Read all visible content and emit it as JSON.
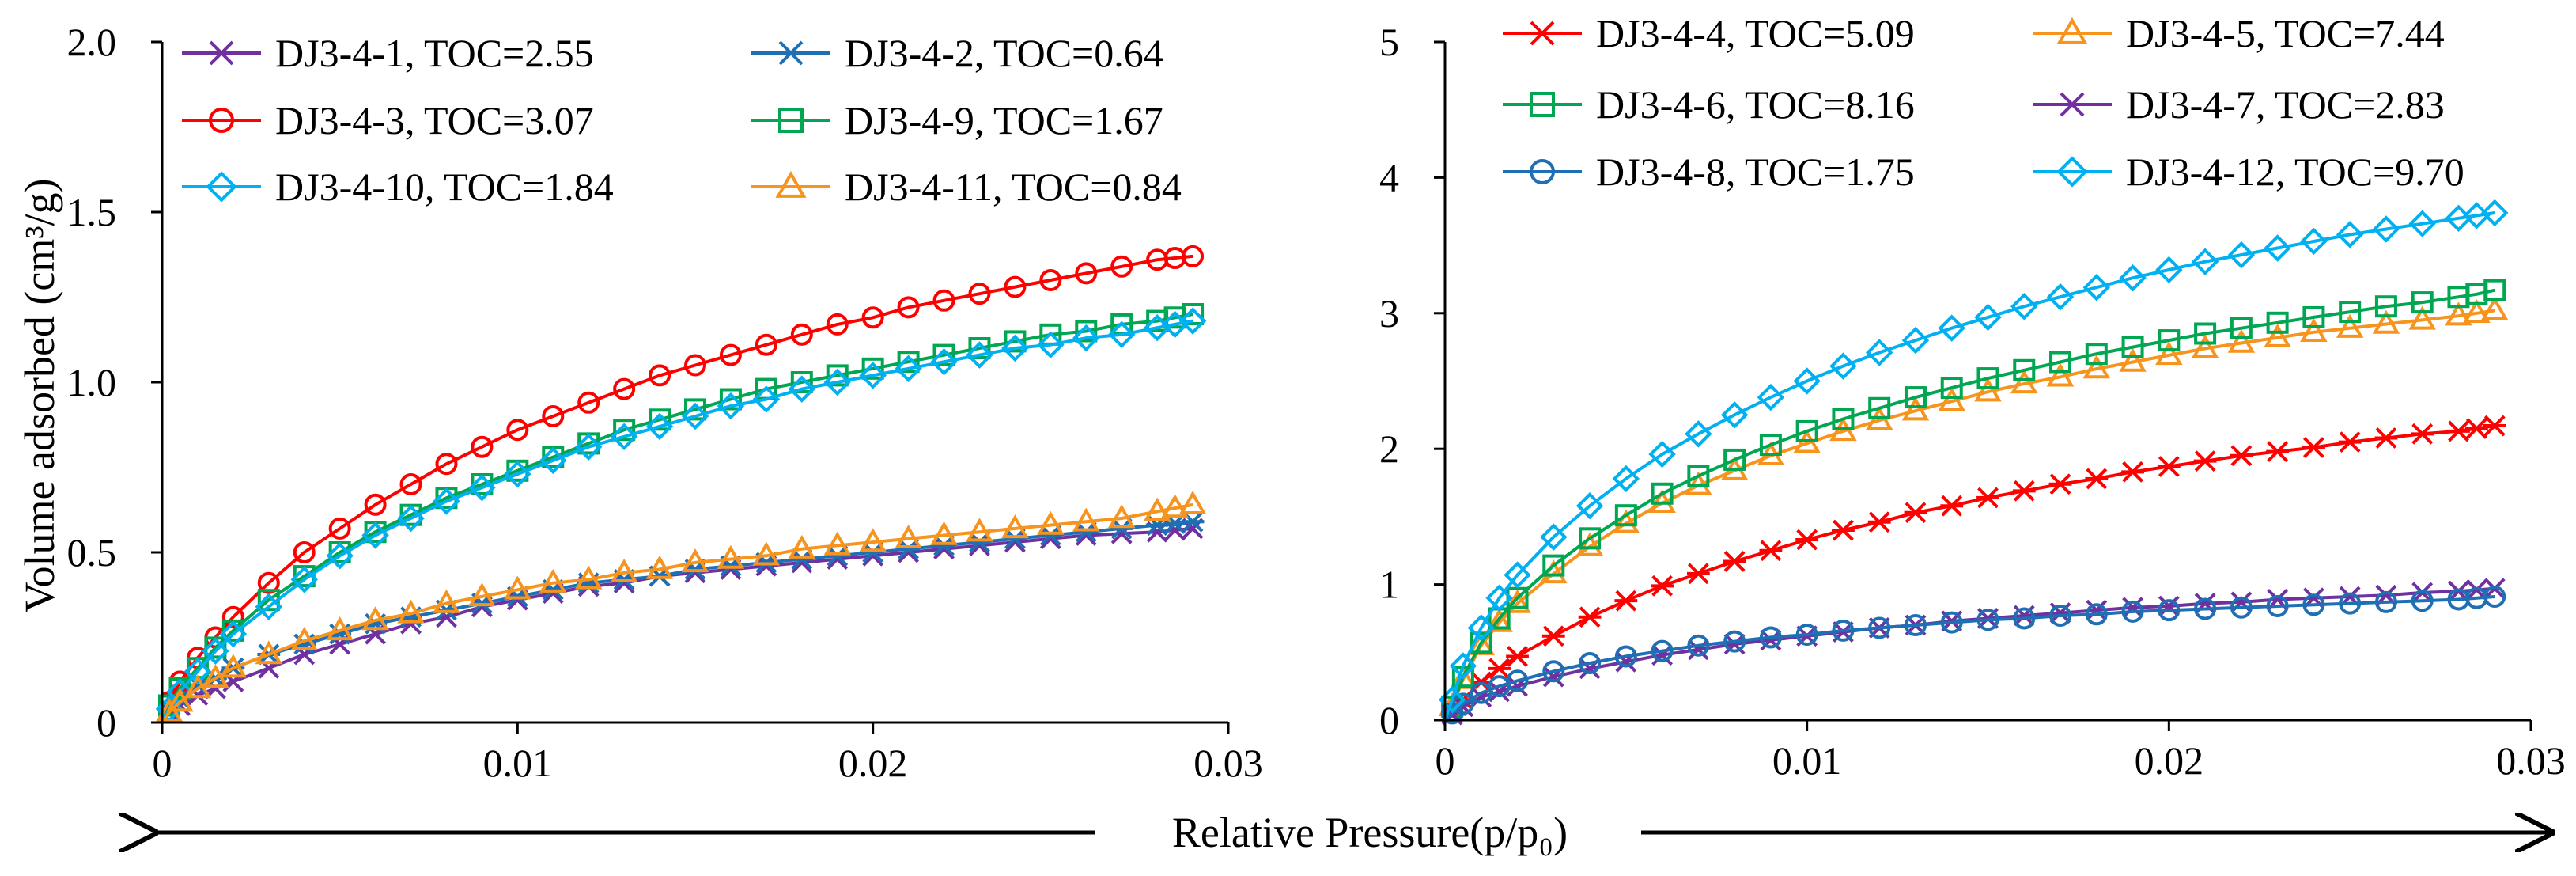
{
  "figure": {
    "shared_xlabel": "Relative Pressure(p/p₀)"
  },
  "chart_data": [
    {
      "type": "line",
      "panel": "left",
      "ylabel": "Volume adsorbed (cm³/g)",
      "xlabel": "",
      "xlim": [
        0,
        0.03
      ],
      "ylim": [
        0,
        2.0
      ],
      "xticks": [
        0,
        0.01,
        0.02,
        0.03
      ],
      "xtick_labels": [
        "0",
        "0.01",
        "0.02",
        "0.03"
      ],
      "yticks": [
        0,
        0.5,
        1.0,
        1.5,
        2.0
      ],
      "ytick_labels": [
        "0",
        "0.5",
        "1.0",
        "1.5",
        "2.0"
      ],
      "grid": false,
      "legend_position": "top",
      "x": [
        0.0002,
        0.0005,
        0.001,
        0.0015,
        0.002,
        0.003,
        0.004,
        0.005,
        0.006,
        0.007,
        0.008,
        0.009,
        0.01,
        0.011,
        0.012,
        0.013,
        0.014,
        0.015,
        0.016,
        0.017,
        0.018,
        0.019,
        0.02,
        0.021,
        0.022,
        0.023,
        0.024,
        0.025,
        0.026,
        0.027,
        0.028,
        0.0285,
        0.029
      ],
      "series": [
        {
          "name": "DJ3-4-1, TOC=2.55",
          "color": "#7030a0",
          "marker": "x",
          "values": [
            0.03,
            0.05,
            0.08,
            0.1,
            0.12,
            0.16,
            0.2,
            0.23,
            0.26,
            0.29,
            0.31,
            0.34,
            0.36,
            0.38,
            0.4,
            0.41,
            0.43,
            0.44,
            0.45,
            0.46,
            0.47,
            0.48,
            0.49,
            0.5,
            0.51,
            0.52,
            0.53,
            0.54,
            0.55,
            0.555,
            0.56,
            0.565,
            0.57
          ]
        },
        {
          "name": "DJ3-4-2, TOC=0.64",
          "color": "#1f6fb4",
          "marker": "asterisk",
          "values": [
            0.04,
            0.07,
            0.11,
            0.13,
            0.16,
            0.2,
            0.23,
            0.26,
            0.29,
            0.31,
            0.33,
            0.35,
            0.37,
            0.39,
            0.41,
            0.42,
            0.43,
            0.45,
            0.46,
            0.47,
            0.48,
            0.49,
            0.5,
            0.51,
            0.52,
            0.53,
            0.54,
            0.55,
            0.56,
            0.57,
            0.58,
            0.585,
            0.59
          ]
        },
        {
          "name": "DJ3-4-3, TOC=3.07",
          "color": "#ff0000",
          "marker": "circle",
          "values": [
            0.06,
            0.12,
            0.19,
            0.25,
            0.31,
            0.41,
            0.5,
            0.57,
            0.64,
            0.7,
            0.76,
            0.81,
            0.86,
            0.9,
            0.94,
            0.98,
            1.02,
            1.05,
            1.08,
            1.11,
            1.14,
            1.17,
            1.19,
            1.22,
            1.24,
            1.26,
            1.28,
            1.3,
            1.32,
            1.34,
            1.36,
            1.365,
            1.37
          ]
        },
        {
          "name": "DJ3-4-9, TOC=1.67",
          "color": "#00a651",
          "marker": "square",
          "values": [
            0.05,
            0.1,
            0.16,
            0.22,
            0.27,
            0.36,
            0.43,
            0.5,
            0.56,
            0.61,
            0.66,
            0.7,
            0.74,
            0.78,
            0.82,
            0.86,
            0.89,
            0.92,
            0.95,
            0.98,
            1.0,
            1.02,
            1.04,
            1.06,
            1.08,
            1.1,
            1.12,
            1.14,
            1.15,
            1.17,
            1.18,
            1.19,
            1.2
          ]
        },
        {
          "name": "DJ3-4-10, TOC=1.84",
          "color": "#00b0f0",
          "marker": "diamond",
          "values": [
            0.04,
            0.09,
            0.15,
            0.21,
            0.26,
            0.34,
            0.42,
            0.49,
            0.55,
            0.6,
            0.65,
            0.69,
            0.73,
            0.77,
            0.81,
            0.84,
            0.87,
            0.9,
            0.93,
            0.95,
            0.98,
            1.0,
            1.02,
            1.04,
            1.06,
            1.08,
            1.1,
            1.11,
            1.13,
            1.14,
            1.16,
            1.17,
            1.18
          ]
        },
        {
          "name": "DJ3-4-11, TOC=0.84",
          "color": "#f7941d",
          "marker": "triangle",
          "values": [
            0.03,
            0.06,
            0.1,
            0.13,
            0.16,
            0.2,
            0.24,
            0.27,
            0.3,
            0.32,
            0.35,
            0.37,
            0.39,
            0.41,
            0.42,
            0.44,
            0.45,
            0.47,
            0.48,
            0.49,
            0.51,
            0.52,
            0.53,
            0.54,
            0.55,
            0.56,
            0.57,
            0.58,
            0.59,
            0.6,
            0.62,
            0.63,
            0.64
          ]
        }
      ]
    },
    {
      "type": "line",
      "panel": "right",
      "ylabel": "",
      "xlabel": "",
      "xlim": [
        0,
        0.03
      ],
      "ylim": [
        0,
        5
      ],
      "xticks": [
        0,
        0.01,
        0.02,
        0.03
      ],
      "xtick_labels": [
        "0",
        "0.01",
        "0.02",
        "0.03"
      ],
      "yticks": [
        0,
        1,
        2,
        3,
        4,
        5
      ],
      "ytick_labels": [
        "0",
        "1",
        "2",
        "3",
        "4",
        "5"
      ],
      "grid": false,
      "legend_position": "top",
      "x": [
        0.0002,
        0.0005,
        0.001,
        0.0015,
        0.002,
        0.003,
        0.004,
        0.005,
        0.006,
        0.007,
        0.008,
        0.009,
        0.01,
        0.011,
        0.012,
        0.013,
        0.014,
        0.015,
        0.016,
        0.017,
        0.018,
        0.019,
        0.02,
        0.021,
        0.022,
        0.023,
        0.024,
        0.025,
        0.026,
        0.027,
        0.028,
        0.0285,
        0.029
      ],
      "series": [
        {
          "name": "DJ3-4-4, TOC=5.09",
          "color": "#ff0000",
          "marker": "asterisk",
          "values": [
            0.05,
            0.15,
            0.28,
            0.38,
            0.47,
            0.62,
            0.76,
            0.88,
            0.99,
            1.08,
            1.17,
            1.25,
            1.33,
            1.4,
            1.46,
            1.53,
            1.58,
            1.64,
            1.69,
            1.74,
            1.78,
            1.83,
            1.87,
            1.91,
            1.95,
            1.98,
            2.01,
            2.05,
            2.08,
            2.11,
            2.13,
            2.15,
            2.17
          ]
        },
        {
          "name": "DJ3-4-5, TOC=7.44",
          "color": "#f7941d",
          "marker": "triangle",
          "values": [
            0.1,
            0.3,
            0.55,
            0.72,
            0.86,
            1.08,
            1.28,
            1.45,
            1.6,
            1.73,
            1.84,
            1.95,
            2.04,
            2.13,
            2.21,
            2.28,
            2.35,
            2.42,
            2.48,
            2.53,
            2.59,
            2.64,
            2.69,
            2.74,
            2.78,
            2.82,
            2.86,
            2.89,
            2.92,
            2.95,
            2.98,
            3.0,
            3.02
          ]
        },
        {
          "name": "DJ3-4-6, TOC=8.16",
          "color": "#00a651",
          "marker": "square",
          "values": [
            0.1,
            0.32,
            0.57,
            0.75,
            0.9,
            1.14,
            1.34,
            1.51,
            1.67,
            1.8,
            1.92,
            2.03,
            2.13,
            2.22,
            2.3,
            2.38,
            2.45,
            2.52,
            2.58,
            2.64,
            2.7,
            2.75,
            2.8,
            2.85,
            2.89,
            2.93,
            2.97,
            3.01,
            3.05,
            3.08,
            3.12,
            3.14,
            3.17
          ]
        },
        {
          "name": "DJ3-4-7, TOC=2.83",
          "color": "#7030a0",
          "marker": "x",
          "values": [
            0.04,
            0.1,
            0.17,
            0.21,
            0.25,
            0.32,
            0.38,
            0.43,
            0.48,
            0.52,
            0.56,
            0.59,
            0.62,
            0.65,
            0.68,
            0.7,
            0.73,
            0.75,
            0.77,
            0.79,
            0.81,
            0.83,
            0.84,
            0.86,
            0.87,
            0.89,
            0.9,
            0.91,
            0.92,
            0.94,
            0.95,
            0.96,
            0.97
          ]
        },
        {
          "name": "DJ3-4-8, TOC=1.75",
          "color": "#1f6fb4",
          "marker": "circle",
          "values": [
            0.05,
            0.12,
            0.2,
            0.25,
            0.29,
            0.36,
            0.42,
            0.47,
            0.51,
            0.55,
            0.58,
            0.61,
            0.63,
            0.66,
            0.68,
            0.7,
            0.72,
            0.74,
            0.75,
            0.77,
            0.78,
            0.8,
            0.81,
            0.82,
            0.83,
            0.84,
            0.85,
            0.86,
            0.87,
            0.88,
            0.89,
            0.9,
            0.91
          ]
        },
        {
          "name": "DJ3-4-12, TOC=9.70",
          "color": "#00b0f0",
          "marker": "diamond",
          "values": [
            0.15,
            0.4,
            0.68,
            0.9,
            1.07,
            1.35,
            1.58,
            1.78,
            1.96,
            2.11,
            2.25,
            2.38,
            2.5,
            2.61,
            2.71,
            2.8,
            2.89,
            2.97,
            3.05,
            3.12,
            3.19,
            3.26,
            3.32,
            3.38,
            3.43,
            3.48,
            3.53,
            3.58,
            3.62,
            3.66,
            3.7,
            3.72,
            3.74
          ]
        }
      ]
    }
  ]
}
